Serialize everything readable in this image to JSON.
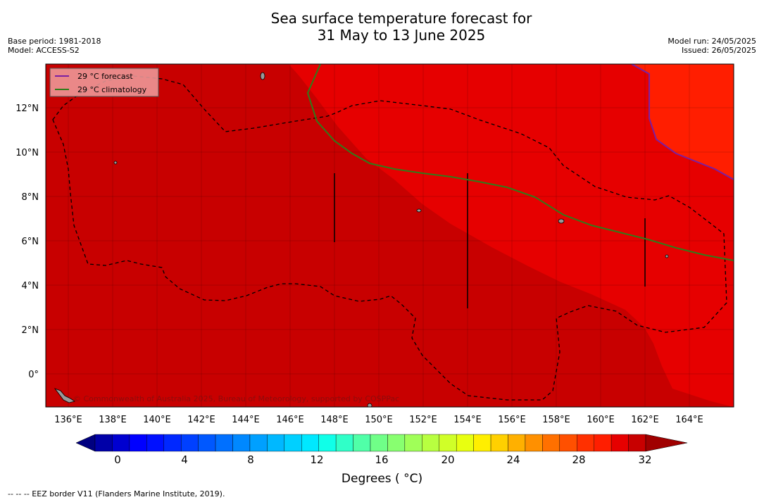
{
  "title": {
    "line1": "Sea surface temperature forecast for",
    "line2": "31 May to 13 June 2025"
  },
  "meta_left": {
    "base_period": "Base period: 1981-2018",
    "model": "Model: ACCESS-S2"
  },
  "meta_right": {
    "model_run": "Model run: 24/05/2025",
    "issued": "Issued: 26/05/2025"
  },
  "legend": {
    "forecast": "29 °C  forecast",
    "climatology": "29 °C  climatology"
  },
  "axes": {
    "lon_ticks": [
      "136°E",
      "138°E",
      "140°E",
      "142°E",
      "144°E",
      "146°E",
      "148°E",
      "150°E",
      "152°E",
      "154°E",
      "156°E",
      "158°E",
      "160°E",
      "162°E",
      "164°E"
    ],
    "lat_ticks": [
      "12°N",
      "10°N",
      "8°N",
      "6°N",
      "4°N",
      "2°N",
      "0°"
    ]
  },
  "colors": {
    "sst_28_29": "#c80000",
    "sst_29_30": "#e60000",
    "sst_30_31": "#ff1e00",
    "forecast_line": "#7a1fa2",
    "climatology_line": "#2e7d1a"
  },
  "copyright": "© Commonwealth of Australia 2025, Bureau of Meteorology, supported by COSPPac",
  "colorbar": {
    "ticks": [
      "0",
      "4",
      "8",
      "12",
      "16",
      "20",
      "24",
      "28",
      "32"
    ],
    "label": "Degrees ( °C)",
    "colors": [
      "#000080",
      "#0000a8",
      "#0000d0",
      "#0000ff",
      "#0010ff",
      "#0028ff",
      "#0040ff",
      "#0058ff",
      "#0070ff",
      "#0088ff",
      "#00a0ff",
      "#00b8ff",
      "#00d0ff",
      "#00e8ff",
      "#10ffe8",
      "#30ffc8",
      "#50ffa8",
      "#70ff88",
      "#88ff70",
      "#a0ff58",
      "#b8ff40",
      "#d0ff28",
      "#e8ff10",
      "#ffef00",
      "#ffd000",
      "#ffb000",
      "#ff9000",
      "#ff7000",
      "#ff5000",
      "#ff3000",
      "#ff1e00",
      "#e60000",
      "#c80000",
      "#a00000"
    ]
  },
  "footnote": "--  --  -- EEZ border V11 (Flanders Marine Institute, 2019)."
}
